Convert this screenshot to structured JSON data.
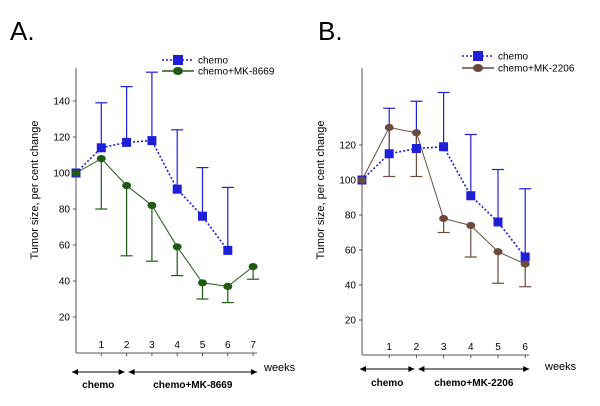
{
  "colors": {
    "chemo": "#1f1fd8",
    "mk8669": "#1e5a14",
    "mk2206": "#6b4a40",
    "axis": "#555555"
  },
  "chart_data": [
    {
      "type": "line",
      "panel_label": "A.",
      "ylabel": "Tumor size, per cent change",
      "xlabel": "weeks",
      "x_ticks": [
        "1",
        "2",
        "3",
        "4",
        "5",
        "6",
        "7"
      ],
      "y_ticks": [
        "20",
        "40",
        "60",
        "80",
        "100",
        "120",
        "140"
      ],
      "ylim": [
        0,
        160
      ],
      "xlim": [
        0,
        7
      ],
      "phases": [
        {
          "label": "chemo",
          "from": 0,
          "to": 2
        },
        {
          "label": "chemo+MK-8669",
          "from": 2,
          "to": 7
        }
      ],
      "series": [
        {
          "name": "chemo",
          "marker": "square",
          "color": "#1f1fd8",
          "x": [
            0,
            1,
            2,
            3,
            4,
            5,
            6
          ],
          "values": [
            100,
            114,
            117,
            118,
            91,
            76,
            57
          ],
          "err_upper": [
            100,
            139,
            148,
            156,
            124,
            103,
            92
          ],
          "err_lower": [
            100,
            114,
            117,
            118,
            91,
            76,
            57
          ]
        },
        {
          "name": "chemo+MK-8669",
          "marker": "circle",
          "color": "#1e5a14",
          "x": [
            0,
            1,
            2,
            3,
            4,
            5,
            6,
            7
          ],
          "values": [
            100,
            108,
            93,
            82,
            59,
            39,
            37,
            48
          ],
          "err_upper": [
            100,
            108,
            93,
            82,
            59,
            39,
            37,
            48
          ],
          "err_lower": [
            100,
            80,
            54,
            51,
            43,
            30,
            28,
            41
          ]
        }
      ]
    },
    {
      "type": "line",
      "panel_label": "B.",
      "ylabel": "Tumor size, per cent change",
      "xlabel": "weeks",
      "x_ticks": [
        "1",
        "2",
        "3",
        "4",
        "5",
        "6"
      ],
      "y_ticks": [
        "20",
        "40",
        "60",
        "80",
        "100",
        "120"
      ],
      "ylim": [
        0,
        160
      ],
      "xlim": [
        0,
        6
      ],
      "phases": [
        {
          "label": "chemo",
          "from": 0,
          "to": 2
        },
        {
          "label": "chemo+MK-2206",
          "from": 2,
          "to": 6
        }
      ],
      "series": [
        {
          "name": "chemo",
          "marker": "square",
          "color": "#1f1fd8",
          "x": [
            0,
            1,
            2,
            3,
            4,
            5,
            6
          ],
          "values": [
            100,
            115,
            118,
            119,
            91,
            76,
            56
          ],
          "err_upper": [
            100,
            141,
            145,
            150,
            126,
            106,
            95
          ],
          "err_lower": [
            100,
            115,
            118,
            119,
            91,
            76,
            56
          ]
        },
        {
          "name": "chemo+MK-2206",
          "marker": "circle",
          "color": "#6b4a40",
          "x": [
            0,
            1,
            2,
            3,
            4,
            5,
            6
          ],
          "values": [
            100,
            130,
            127,
            78,
            74,
            59,
            52
          ],
          "err_upper": [
            100,
            130,
            127,
            78,
            74,
            59,
            52
          ],
          "err_lower": [
            100,
            102,
            102,
            70,
            56,
            41,
            39
          ]
        }
      ]
    }
  ]
}
